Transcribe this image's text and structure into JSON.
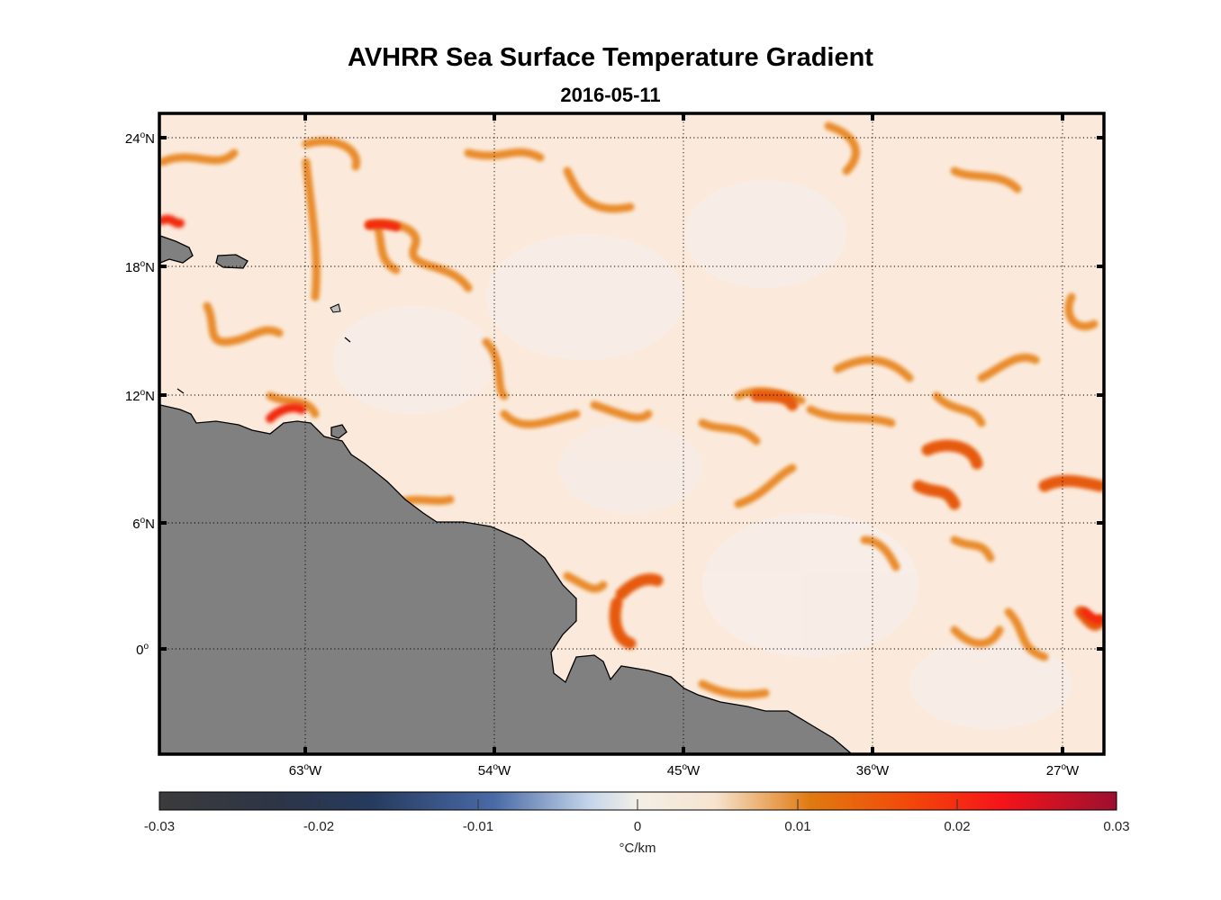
{
  "title": "AVHRR Sea Surface Temperature Gradient",
  "subtitle": "2016-05-11",
  "map": {
    "lat_ticks": [
      {
        "deg": "24",
        "hemi": "N",
        "value": 24
      },
      {
        "deg": "18",
        "hemi": "N",
        "value": 18
      },
      {
        "deg": "12",
        "hemi": "N",
        "value": 12
      },
      {
        "deg": "6",
        "hemi": "N",
        "value": 6
      },
      {
        "deg": "0",
        "hemi": "",
        "value": 0
      }
    ],
    "lon_ticks": [
      {
        "deg": "63",
        "hemi": "W",
        "value": -63
      },
      {
        "deg": "54",
        "hemi": "W",
        "value": -54
      },
      {
        "deg": "45",
        "hemi": "W",
        "value": -45
      },
      {
        "deg": "36",
        "hemi": "W",
        "value": -36
      },
      {
        "deg": "27",
        "hemi": "W",
        "value": -27
      }
    ],
    "grid": true,
    "land_color": "#808080",
    "ocean_base_color": "#fbe9d8"
  },
  "colorbar": {
    "ticks": [
      "-0.03",
      "-0.02",
      "-0.01",
      "0",
      "0.01",
      "0.02",
      "0.03"
    ],
    "unit": "°C/km",
    "colors": [
      "#3b3b3b",
      "#263a5e",
      "#4a6aa6",
      "#dfeaf4",
      "#f7ecdd",
      "#e07a10",
      "#ff1a00",
      "#9c1030"
    ]
  }
}
